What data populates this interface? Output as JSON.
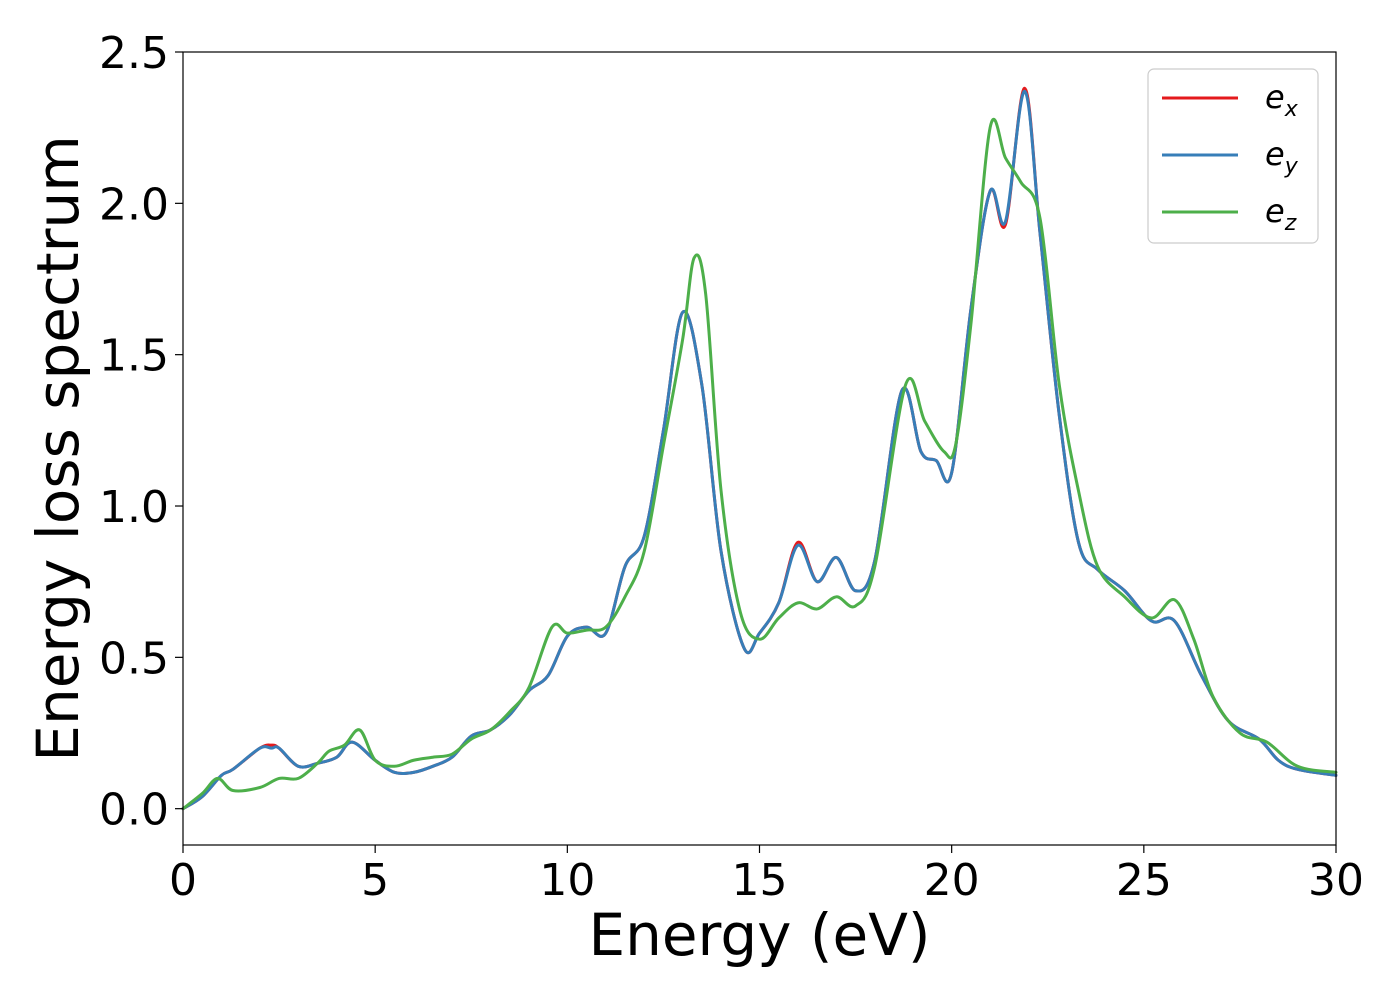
{
  "chart_data": {
    "type": "line",
    "xlabel": "Energy (eV)",
    "ylabel": "Energy loss spectrum",
    "xlim": [
      0,
      30
    ],
    "ylim": [
      -0.12,
      2.5
    ],
    "xticks": [
      "0",
      "5",
      "10",
      "15",
      "20",
      "25",
      "30"
    ],
    "yticks": [
      "0.0",
      "0.5",
      "1.0",
      "1.5",
      "2.0",
      "2.5"
    ],
    "grid": false,
    "legend_position": "top-right",
    "series": [
      {
        "name": "e",
        "subscript": "x",
        "color": "#e41a1c",
        "x": [
          0,
          0.5,
          1,
          1.3,
          2,
          2.3,
          2.5,
          3,
          3.5,
          4,
          4.4,
          5,
          5.5,
          6,
          6.5,
          7,
          7.5,
          8,
          8.5,
          9,
          9.5,
          10,
          10.5,
          11,
          11.5,
          12,
          12.5,
          13,
          13.5,
          14,
          14.6,
          15,
          15.5,
          16,
          16.5,
          17,
          17.5,
          18,
          18.7,
          19.2,
          19.6,
          20,
          20.5,
          21,
          21.4,
          21.9,
          22.3,
          22.8,
          23.3,
          23.8,
          24.5,
          25.2,
          25.8,
          26.5,
          27.2,
          28,
          28.5,
          29,
          30
        ],
        "y": [
          0,
          0.04,
          0.11,
          0.13,
          0.2,
          0.21,
          0.2,
          0.14,
          0.15,
          0.17,
          0.22,
          0.16,
          0.12,
          0.12,
          0.14,
          0.17,
          0.24,
          0.26,
          0.31,
          0.39,
          0.44,
          0.57,
          0.6,
          0.58,
          0.8,
          0.9,
          1.25,
          1.64,
          1.4,
          0.85,
          0.53,
          0.58,
          0.68,
          0.88,
          0.75,
          0.83,
          0.72,
          0.82,
          1.38,
          1.18,
          1.15,
          1.11,
          1.65,
          2.04,
          1.93,
          2.38,
          1.9,
          1.3,
          0.88,
          0.79,
          0.72,
          0.62,
          0.62,
          0.44,
          0.29,
          0.23,
          0.16,
          0.13,
          0.11
        ]
      },
      {
        "name": "e",
        "subscript": "y",
        "color": "#377eb8",
        "x": [
          0,
          0.5,
          1,
          1.3,
          2,
          2.3,
          2.5,
          3,
          3.5,
          4,
          4.4,
          5,
          5.5,
          6,
          6.5,
          7,
          7.5,
          8,
          8.5,
          9,
          9.5,
          10,
          10.5,
          11,
          11.5,
          12,
          12.5,
          13,
          13.5,
          14,
          14.6,
          15,
          15.5,
          16,
          16.5,
          17,
          17.5,
          18,
          18.7,
          19.2,
          19.6,
          20,
          20.5,
          21,
          21.4,
          21.9,
          22.3,
          22.8,
          23.3,
          23.8,
          24.5,
          25.2,
          25.8,
          26.5,
          27.2,
          28,
          28.5,
          29,
          30
        ],
        "y": [
          0,
          0.04,
          0.11,
          0.13,
          0.2,
          0.2,
          0.2,
          0.14,
          0.15,
          0.17,
          0.22,
          0.16,
          0.12,
          0.12,
          0.14,
          0.17,
          0.24,
          0.26,
          0.31,
          0.39,
          0.44,
          0.57,
          0.6,
          0.58,
          0.8,
          0.9,
          1.25,
          1.64,
          1.4,
          0.85,
          0.53,
          0.58,
          0.68,
          0.87,
          0.75,
          0.83,
          0.72,
          0.82,
          1.38,
          1.18,
          1.15,
          1.11,
          1.65,
          2.04,
          1.94,
          2.37,
          1.9,
          1.3,
          0.88,
          0.79,
          0.72,
          0.62,
          0.62,
          0.44,
          0.29,
          0.23,
          0.16,
          0.13,
          0.11
        ]
      },
      {
        "name": "e",
        "subscript": "z",
        "color": "#4daf4a",
        "x": [
          0,
          0.5,
          0.9,
          1.3,
          2,
          2.5,
          3,
          3.5,
          3.8,
          4.2,
          4.6,
          5,
          5.5,
          6,
          6.5,
          7,
          7.5,
          8,
          8.5,
          9,
          9.6,
          10,
          10.5,
          11,
          11.5,
          12,
          12.5,
          13,
          13.3,
          13.6,
          14,
          14.5,
          15,
          15.5,
          16,
          16.5,
          17,
          17.5,
          18,
          18.8,
          19.3,
          19.8,
          20.1,
          20.5,
          21,
          21.4,
          21.8,
          22.3,
          22.8,
          23.3,
          23.8,
          24.5,
          25.2,
          25.8,
          26.3,
          26.8,
          27.5,
          28.2,
          29,
          30
        ],
        "y": [
          0,
          0.05,
          0.1,
          0.06,
          0.07,
          0.1,
          0.1,
          0.15,
          0.19,
          0.21,
          0.26,
          0.16,
          0.14,
          0.16,
          0.17,
          0.18,
          0.23,
          0.26,
          0.32,
          0.4,
          0.6,
          0.58,
          0.59,
          0.6,
          0.7,
          0.85,
          1.2,
          1.55,
          1.82,
          1.7,
          1.05,
          0.65,
          0.56,
          0.63,
          0.68,
          0.66,
          0.7,
          0.67,
          0.8,
          1.4,
          1.28,
          1.18,
          1.2,
          1.6,
          2.25,
          2.15,
          2.07,
          1.95,
          1.4,
          1.05,
          0.8,
          0.7,
          0.63,
          0.69,
          0.56,
          0.37,
          0.25,
          0.22,
          0.14,
          0.12
        ]
      }
    ]
  }
}
